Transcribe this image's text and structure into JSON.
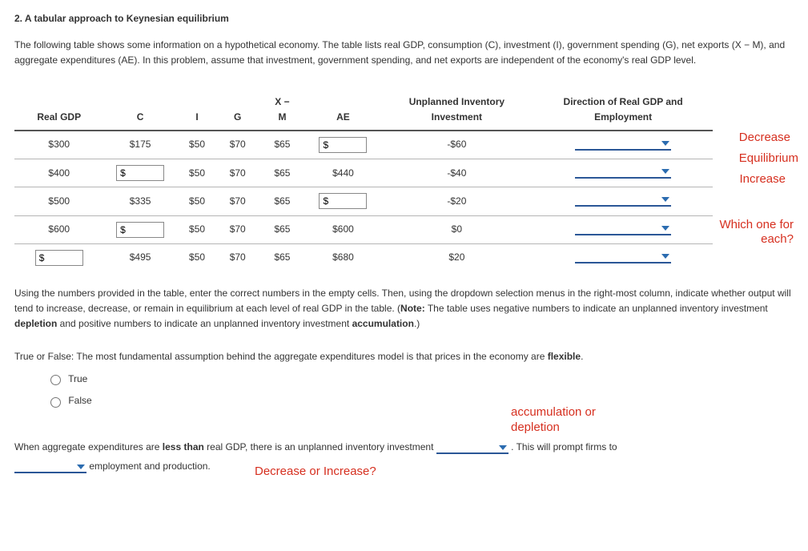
{
  "title": "2. A tabular approach to Keynesian equilibrium",
  "intro": "The following table shows some information on a hypothetical economy. The table lists real GDP, consumption (C), investment (I), government spending (G), net exports (X − M), and aggregate expenditures (AE). In this problem, assume that investment, government spending, and net exports are independent of the economy's real GDP level.",
  "headers": {
    "gdp": "Real GDP",
    "c": "C",
    "i": "I",
    "g": "G",
    "xm_top": "X −",
    "xm_bot": "M",
    "ae": "AE",
    "inv_top": "Unplanned Inventory",
    "inv_bot": "Investment",
    "dir_top": "Direction of Real GDP and",
    "dir_bot": "Employment"
  },
  "rows": [
    {
      "gdp": "$300",
      "gdp_input": false,
      "c": "$175",
      "c_input": false,
      "i": "$50",
      "g": "$70",
      "xm": "$65",
      "ae": "$",
      "ae_input": true,
      "inv": "-$60"
    },
    {
      "gdp": "$400",
      "gdp_input": false,
      "c": "$",
      "c_input": true,
      "i": "$50",
      "g": "$70",
      "xm": "$65",
      "ae": "$440",
      "ae_input": false,
      "inv": "-$40"
    },
    {
      "gdp": "$500",
      "gdp_input": false,
      "c": "$335",
      "c_input": false,
      "i": "$50",
      "g": "$70",
      "xm": "$65",
      "ae": "$",
      "ae_input": true,
      "inv": "-$20"
    },
    {
      "gdp": "$600",
      "gdp_input": false,
      "c": "$",
      "c_input": true,
      "i": "$50",
      "g": "$70",
      "xm": "$65",
      "ae": "$600",
      "ae_input": false,
      "inv": "$0"
    },
    {
      "gdp": "$",
      "gdp_input": true,
      "c": "$495",
      "c_input": false,
      "i": "$50",
      "g": "$70",
      "xm": "$65",
      "ae": "$680",
      "ae_input": false,
      "inv": "$20"
    }
  ],
  "annotations": {
    "decrease": "Decrease",
    "equilibrium": "Equilibrium",
    "increase": "Increase",
    "which": "Which one for each?",
    "accdep": "accumulation or depletion",
    "decinc": "Decrease or Increase?"
  },
  "instruction_pre": "Using the numbers provided in the table, enter the correct numbers in the empty cells. Then, using the dropdown selection menus in the right-most column, indicate whether output will tend to increase, decrease, or remain in equilibrium at each level of real GDP in the table. (",
  "instruction_note_label": "Note:",
  "instruction_mid": " The table uses negative numbers to indicate an unplanned inventory investment ",
  "instruction_bold1": "depletion",
  "instruction_mid2": " and positive numbers to indicate an unplanned inventory investment ",
  "instruction_bold2": "accumulation",
  "instruction_post": ".)",
  "tf_q_pre": "True or False: The most fundamental assumption behind the aggregate expenditures model is that prices in the economy are ",
  "tf_q_bold": "flexible",
  "tf_q_post": ".",
  "true_label": "True",
  "false_label": "False",
  "fill_pre": "When aggregate expenditures are ",
  "fill_bold1": "less than",
  "fill_mid": " real GDP, there is an unplanned inventory investment ",
  "fill_post1": " . This will prompt firms to ",
  "fill_post2": " employment and production.",
  "input_placeholder": "$"
}
